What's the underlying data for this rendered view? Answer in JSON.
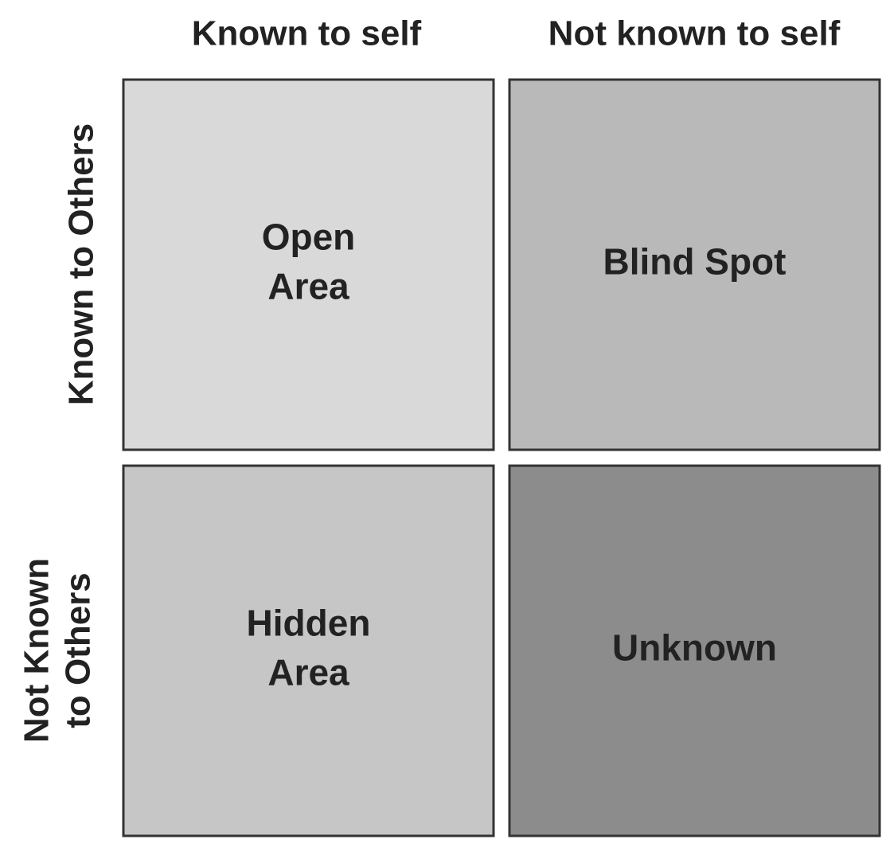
{
  "columns": [
    "Known to self",
    "Not known to self"
  ],
  "rows": [
    [
      "Known to Others"
    ],
    [
      "Not Known",
      "to Others"
    ]
  ],
  "quadrants": [
    {
      "lines": [
        "Open",
        "Area"
      ],
      "color": "#d9d9d9"
    },
    {
      "lines": [
        "Blind Spot"
      ],
      "color": "#b9b9b9"
    },
    {
      "lines": [
        "Hidden",
        "Area"
      ],
      "color": "#c6c6c6"
    },
    {
      "lines": [
        "Unknown"
      ],
      "color": "#8c8c8c"
    }
  ]
}
